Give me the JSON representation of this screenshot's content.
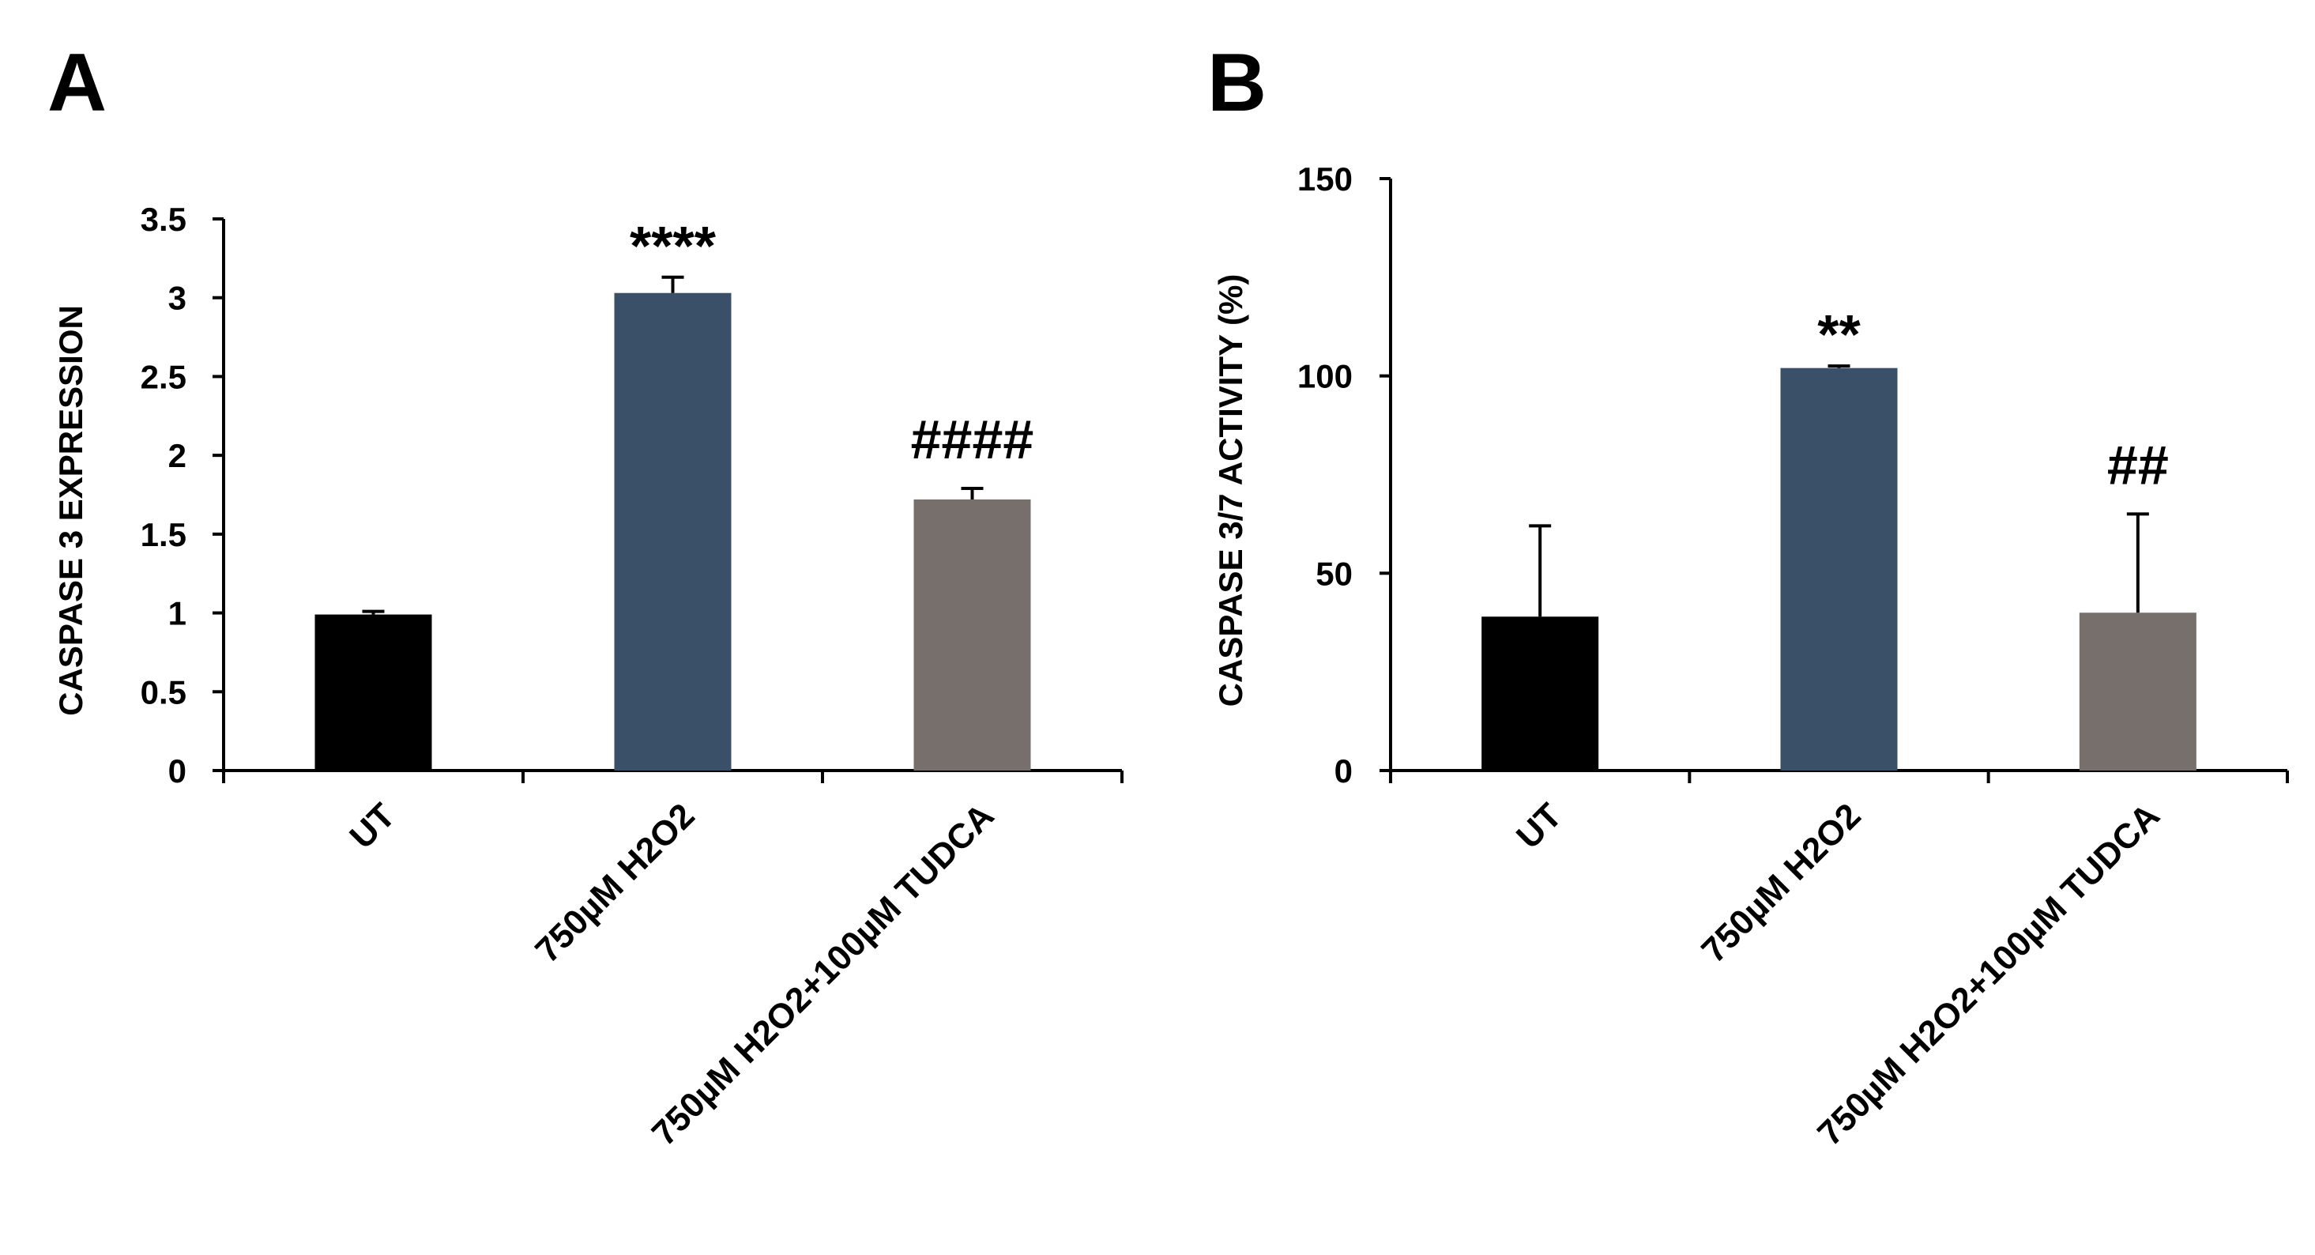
{
  "chart_data": [
    {
      "panel": "A",
      "type": "bar",
      "title": "",
      "ylabel": "CASPASE 3 EXPRESSION",
      "xlabel": "",
      "ylim": [
        0,
        3.5
      ],
      "yticks": [
        0,
        0.5,
        1,
        1.5,
        2,
        2.5,
        3,
        3.5
      ],
      "ytick_labels": [
        "0",
        "0.5",
        "1",
        "1.5",
        "2",
        "2.5",
        "3",
        "3.5"
      ],
      "categories": [
        "UT",
        "750µM H2O2",
        "750µM H2O2+100µM TUDCA"
      ],
      "values": [
        0.99,
        3.03,
        1.72
      ],
      "errors": [
        0.02,
        0.1,
        0.07
      ],
      "annotations": [
        "",
        "****",
        "####"
      ],
      "colors": [
        "#000000",
        "#3a5068",
        "#766f6b"
      ],
      "grid": false
    },
    {
      "panel": "B",
      "type": "bar",
      "title": "",
      "ylabel": "CASPASE 3/7 ACTIVITY (%)",
      "xlabel": "",
      "ylim": [
        0,
        150
      ],
      "yticks": [
        0,
        50,
        100,
        150
      ],
      "ytick_labels": [
        "0",
        "50",
        "100",
        "150"
      ],
      "categories": [
        "UT",
        "750µM H2O2",
        "750µM H2O2+100µM TUDCA"
      ],
      "values": [
        39,
        102,
        40
      ],
      "errors": [
        23,
        0.5,
        25
      ],
      "annotations": [
        "",
        "**",
        "##"
      ],
      "colors": [
        "#000000",
        "#3a5068",
        "#766f6b"
      ],
      "grid": false
    }
  ]
}
